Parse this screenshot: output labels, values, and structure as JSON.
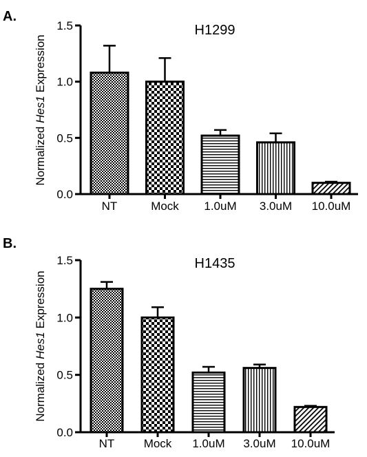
{
  "chart_data": [
    {
      "type": "bar",
      "panel_label": "A.",
      "title": "H1299",
      "ylabel_prefix": "Normalized ",
      "ylabel_italic": "Hes1",
      "ylabel_suffix": " Expression",
      "xlabel": "",
      "ylim": [
        0,
        1.5
      ],
      "yticks": [
        "0.0",
        "0.5",
        "1.0",
        "1.5"
      ],
      "categories": [
        "NT",
        "Mock",
        "1.0uM",
        "3.0uM",
        "10.0uM"
      ],
      "values": [
        1.08,
        1.0,
        0.52,
        0.46,
        0.1
      ],
      "errors": [
        0.24,
        0.21,
        0.05,
        0.08,
        0.01
      ],
      "patterns": [
        "fine-check",
        "checker",
        "horizontal",
        "vertical",
        "diagonal"
      ],
      "grid": false,
      "colors": {
        "stroke": "#000000",
        "fill": "#ffffff"
      }
    },
    {
      "type": "bar",
      "panel_label": "B.",
      "title": "H1435",
      "ylabel_prefix": "Normalized ",
      "ylabel_italic": "Hes1",
      "ylabel_suffix": " Expression",
      "xlabel": "",
      "ylim": [
        0,
        1.5
      ],
      "yticks": [
        "0.0",
        "0.5",
        "1.0",
        "1.5"
      ],
      "categories": [
        "NT",
        "Mock",
        "1.0uM",
        "3.0uM",
        "10.0uM"
      ],
      "values": [
        1.25,
        1.0,
        0.52,
        0.56,
        0.22
      ],
      "errors": [
        0.06,
        0.09,
        0.05,
        0.03,
        0.01
      ],
      "patterns": [
        "fine-check",
        "checker",
        "horizontal",
        "vertical",
        "diagonal"
      ],
      "grid": false,
      "colors": {
        "stroke": "#000000",
        "fill": "#ffffff"
      }
    }
  ]
}
